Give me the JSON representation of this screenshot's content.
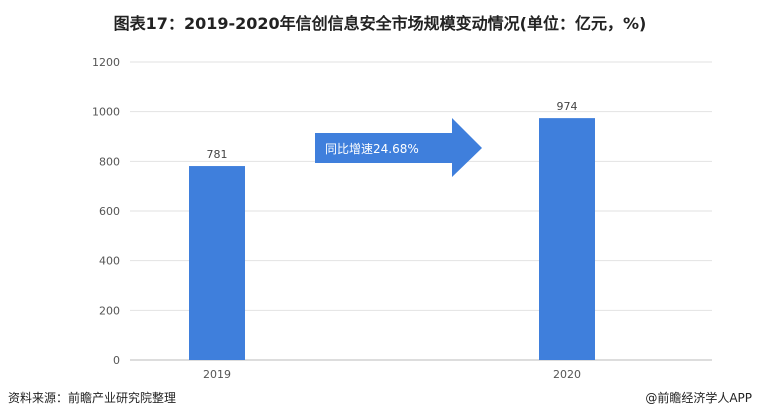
{
  "title": "图表17：2019-2020年信创信息安全市场规模变动情况(单位：亿元，%)",
  "chart_data": {
    "type": "bar",
    "categories": [
      "2019",
      "2020"
    ],
    "values": [
      781,
      974
    ],
    "data_labels": [
      "781",
      "974"
    ],
    "ylim": [
      0,
      1200
    ],
    "yticks": [
      0,
      200,
      400,
      600,
      800,
      1000,
      1200
    ],
    "grid": true,
    "bar_color": "#3f7fdc",
    "annotation": "同比增速24.68%",
    "annotation_color": "#3f7fdc"
  },
  "footer": {
    "source": "资料来源：前瞻产业研究院整理",
    "credit": "@前瞻经济学人APP"
  }
}
